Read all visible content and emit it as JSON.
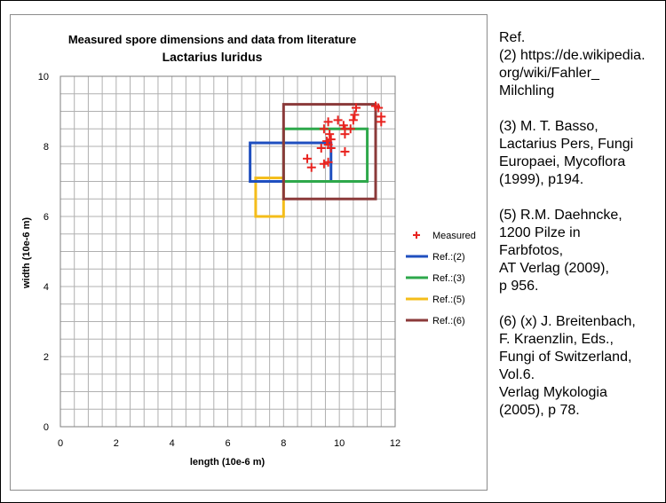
{
  "chart_data": {
    "type": "scatter",
    "title": "Measured spore dimensions and data from literature",
    "subtitle": "Lactarius luridus",
    "xlabel": "length (10e-6 m)",
    "ylabel": "width (10e-6 m)",
    "xlim": [
      0,
      12
    ],
    "ylim": [
      0,
      10
    ],
    "xticks": [
      0,
      2,
      4,
      6,
      8,
      10,
      12
    ],
    "yticks": [
      0,
      2,
      4,
      6,
      8,
      10
    ],
    "grid": true,
    "legend_position": "right",
    "series": [
      {
        "name": "Measured",
        "marker": "+",
        "color": "#e8231f",
        "points": [
          [
            11.3,
            9.15
          ],
          [
            11.4,
            9.1
          ],
          [
            10.6,
            9.1
          ],
          [
            10.55,
            8.9
          ],
          [
            11.5,
            8.85
          ],
          [
            11.5,
            8.7
          ],
          [
            10.5,
            8.75
          ],
          [
            9.6,
            8.7
          ],
          [
            9.95,
            8.75
          ],
          [
            10.15,
            8.6
          ],
          [
            10.4,
            8.5
          ],
          [
            10.2,
            8.5
          ],
          [
            9.45,
            8.5
          ],
          [
            10.2,
            8.35
          ],
          [
            9.65,
            8.35
          ],
          [
            9.7,
            8.2
          ],
          [
            9.55,
            8.15
          ],
          [
            9.6,
            8.05
          ],
          [
            9.7,
            7.95
          ],
          [
            9.35,
            7.95
          ],
          [
            10.2,
            7.85
          ],
          [
            8.85,
            7.65
          ],
          [
            9.0,
            7.4
          ],
          [
            9.6,
            7.55
          ],
          [
            9.45,
            7.5
          ]
        ]
      },
      {
        "name": "Ref.:(2)",
        "type": "rect",
        "color": "#1f4fbf",
        "x": [
          6.8,
          9.7
        ],
        "y": [
          7.0,
          8.1
        ]
      },
      {
        "name": "Ref.:(3)",
        "type": "rect",
        "color": "#2ea84b",
        "x": [
          8.0,
          11.0
        ],
        "y": [
          7.0,
          8.5
        ]
      },
      {
        "name": "Ref.:(5)",
        "type": "rect",
        "color": "#f4bd1a",
        "x": [
          7.0,
          8.0
        ],
        "y": [
          6.0,
          7.1
        ]
      },
      {
        "name": "Ref.:(6)",
        "type": "rect",
        "color": "#8b3a3a",
        "x": [
          8.0,
          11.3
        ],
        "y": [
          6.5,
          9.2
        ]
      }
    ]
  },
  "references": {
    "heading": "Ref.",
    "entries": [
      "(2) https://de.wikipedia.\norg/wiki/Fahler_\nMilchling",
      "(3) M. T. Basso,\nLactarius Pers, Fungi\nEuropaei, Mycoflora\n(1999), p194.",
      "(5) R.M. Daehncke,\n1200 Pilze in\nFarbfotos,\nAT Verlag (2009),\np 956.",
      "(6) (x) J. Breitenbach,\nF. Kraenzlin, Eds.,\nFungi of Switzerland,\nVol.6.\nVerlag Mykologia\n(2005), p 78."
    ]
  }
}
